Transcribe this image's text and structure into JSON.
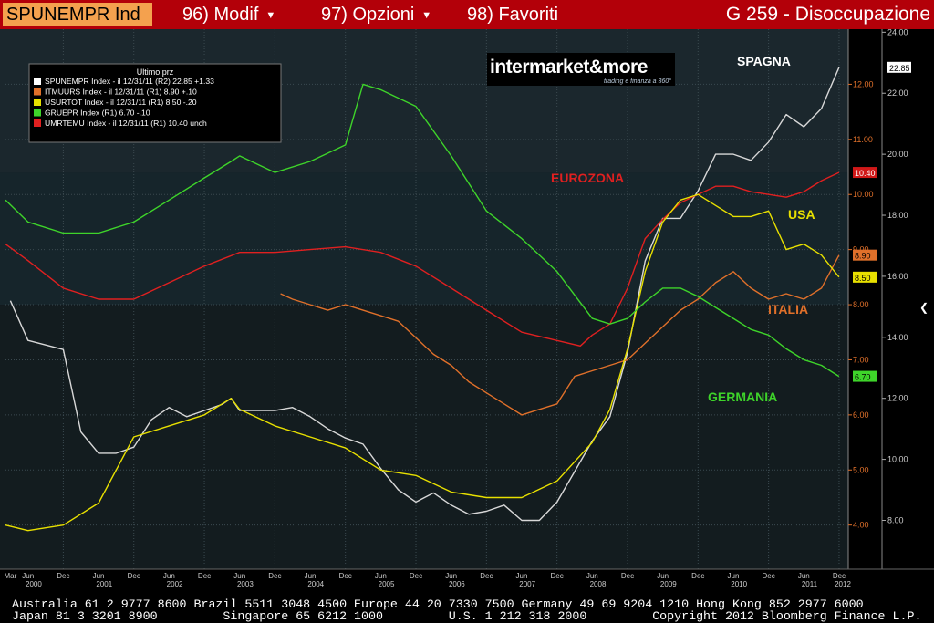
{
  "header": {
    "ticker": "SPUNEMPR Ind",
    "menu": [
      "96) Modif",
      "97) Opzioni",
      "98) Favoriti"
    ],
    "graph_title": "G 259 - Disoccupazione"
  },
  "colors": {
    "spagna": "#d8d8d8",
    "italia": "#e0702a",
    "usa": "#e8e000",
    "germania": "#3ed42a",
    "eurozona": "#e02020"
  },
  "legend": {
    "title": "Ultimo prz",
    "rows": [
      {
        "text": "SPUNEMPR Index -  il 12/31/11  (R2) 22.85  +1.33",
        "color": "#ffffff"
      },
      {
        "text": "ITMUURS Index -  il 12/31/11  (R1)   8.90  +.10",
        "color": "#e0702a"
      },
      {
        "text": "USURTOT Index -  il 12/31/11  (R1)   8.50  -.20",
        "color": "#e8e000"
      },
      {
        "text": "GRUEPR Index  (R1)               6.70  -.10",
        "color": "#3ed42a"
      },
      {
        "text": "UMRTEMU Index -  il 12/31/11  (R1)  10.40  unch",
        "color": "#e02020"
      }
    ]
  },
  "logo": {
    "main": "intermarket&more",
    "sub": "trading e finanza a 360°"
  },
  "annotations": {
    "spagna": "SPAGNA",
    "eurozona": "EUROZONA",
    "usa": "USA",
    "italia": "ITALIA",
    "germania": "GERMANIA"
  },
  "last_labels": {
    "spagna": "22.85",
    "eurozona": "10.40",
    "italia": "8.90",
    "usa": "8.50",
    "germania": "6.70"
  },
  "chart_data": {
    "type": "line",
    "x_ticks": [
      {
        "label": "Mar",
        "t": 2000.17
      },
      {
        "label": "Jun",
        "t": 2000.42
      },
      {
        "label": "Dec",
        "t": 2000.92
      },
      {
        "label": "Jun",
        "t": 2001.42
      },
      {
        "label": "Dec",
        "t": 2001.92
      },
      {
        "label": "Jun",
        "t": 2002.42
      },
      {
        "label": "Dec",
        "t": 2002.92
      },
      {
        "label": "Jun",
        "t": 2003.42
      },
      {
        "label": "Dec",
        "t": 2003.92
      },
      {
        "label": "Jun",
        "t": 2004.42
      },
      {
        "label": "Dec",
        "t": 2004.92
      },
      {
        "label": "Jun",
        "t": 2005.42
      },
      {
        "label": "Dec",
        "t": 2005.92
      },
      {
        "label": "Jun",
        "t": 2006.42
      },
      {
        "label": "Dec",
        "t": 2006.92
      },
      {
        "label": "Jun",
        "t": 2007.42
      },
      {
        "label": "Dec",
        "t": 2007.92
      },
      {
        "label": "Jun",
        "t": 2008.42
      },
      {
        "label": "Dec",
        "t": 2008.92
      },
      {
        "label": "Jun",
        "t": 2009.42
      },
      {
        "label": "Dec",
        "t": 2009.92
      },
      {
        "label": "Jun",
        "t": 2010.42
      },
      {
        "label": "Dec",
        "t": 2010.92
      },
      {
        "label": "Jun",
        "t": 2011.42
      },
      {
        "label": "Dec",
        "t": 2011.92
      }
    ],
    "year_labels": [
      "2000",
      "2001",
      "2002",
      "2003",
      "2004",
      "2005",
      "2006",
      "2007",
      "2008",
      "2009",
      "2010",
      "2011",
      "2012"
    ],
    "x_range": [
      2000.1,
      2012.05
    ],
    "left_axis": {
      "name": "R1",
      "ticks": [
        "4.00",
        "5.00",
        "6.00",
        "7.00",
        "8.00",
        "9.00",
        "10.00",
        "11.00",
        "12.00"
      ],
      "range": [
        3.2,
        13.0
      ]
    },
    "right_axis": {
      "name": "R2",
      "ticks": [
        "8.00",
        "10.00",
        "12.00",
        "14.00",
        "16.00",
        "18.00",
        "20.00",
        "22.00",
        "24.00"
      ],
      "range": [
        6.4,
        24.1
      ]
    },
    "series": [
      {
        "name": "SPUNEMPR Index",
        "key": "spagna",
        "axis": "R2",
        "points": [
          [
            2000.17,
            15.2
          ],
          [
            2000.42,
            13.9
          ],
          [
            2000.75,
            13.7
          ],
          [
            2000.92,
            13.6
          ],
          [
            2001.17,
            10.9
          ],
          [
            2001.42,
            10.2
          ],
          [
            2001.67,
            10.2
          ],
          [
            2001.92,
            10.4
          ],
          [
            2002.17,
            11.3
          ],
          [
            2002.42,
            11.7
          ],
          [
            2002.67,
            11.4
          ],
          [
            2002.92,
            11.6
          ],
          [
            2003.17,
            11.8
          ],
          [
            2003.3,
            12.0
          ],
          [
            2003.42,
            11.6
          ],
          [
            2003.67,
            11.6
          ],
          [
            2003.92,
            11.6
          ],
          [
            2004.17,
            11.7
          ],
          [
            2004.42,
            11.4
          ],
          [
            2004.67,
            11.0
          ],
          [
            2004.92,
            10.7
          ],
          [
            2005.17,
            10.5
          ],
          [
            2005.42,
            9.7
          ],
          [
            2005.67,
            9.0
          ],
          [
            2005.92,
            8.6
          ],
          [
            2006.17,
            8.9
          ],
          [
            2006.42,
            8.5
          ],
          [
            2006.67,
            8.2
          ],
          [
            2006.92,
            8.3
          ],
          [
            2007.17,
            8.5
          ],
          [
            2007.42,
            8.0
          ],
          [
            2007.67,
            8.0
          ],
          [
            2007.92,
            8.6
          ],
          [
            2008.17,
            9.6
          ],
          [
            2008.42,
            10.6
          ],
          [
            2008.67,
            11.4
          ],
          [
            2008.92,
            13.5
          ],
          [
            2009.17,
            16.5
          ],
          [
            2009.42,
            17.9
          ],
          [
            2009.67,
            17.9
          ],
          [
            2009.92,
            18.8
          ],
          [
            2010.17,
            20.0
          ],
          [
            2010.42,
            20.0
          ],
          [
            2010.67,
            19.8
          ],
          [
            2010.92,
            20.4
          ],
          [
            2011.17,
            21.3
          ],
          [
            2011.42,
            20.9
          ],
          [
            2011.67,
            21.5
          ],
          [
            2011.92,
            22.85
          ]
        ]
      },
      {
        "name": "UMRTEMU Index",
        "key": "eurozona",
        "axis": "R1",
        "points": [
          [
            2000.1,
            9.1
          ],
          [
            2000.42,
            8.8
          ],
          [
            2000.92,
            8.3
          ],
          [
            2001.42,
            8.1
          ],
          [
            2001.92,
            8.1
          ],
          [
            2002.42,
            8.4
          ],
          [
            2002.92,
            8.7
          ],
          [
            2003.42,
            8.95
          ],
          [
            2003.92,
            8.95
          ],
          [
            2004.42,
            9.0
          ],
          [
            2004.92,
            9.05
          ],
          [
            2005.42,
            8.95
          ],
          [
            2005.92,
            8.7
          ],
          [
            2006.42,
            8.3
          ],
          [
            2006.92,
            7.9
          ],
          [
            2007.42,
            7.5
          ],
          [
            2007.92,
            7.35
          ],
          [
            2008.25,
            7.25
          ],
          [
            2008.42,
            7.45
          ],
          [
            2008.67,
            7.65
          ],
          [
            2008.92,
            8.3
          ],
          [
            2009.17,
            9.2
          ],
          [
            2009.42,
            9.55
          ],
          [
            2009.67,
            9.85
          ],
          [
            2009.92,
            10.0
          ],
          [
            2010.17,
            10.15
          ],
          [
            2010.42,
            10.15
          ],
          [
            2010.67,
            10.05
          ],
          [
            2010.92,
            10.0
          ],
          [
            2011.17,
            9.95
          ],
          [
            2011.42,
            10.05
          ],
          [
            2011.67,
            10.25
          ],
          [
            2011.92,
            10.4
          ]
        ]
      },
      {
        "name": "ITMUURS Index",
        "key": "italia",
        "axis": "R1",
        "points": [
          [
            2004.0,
            8.2
          ],
          [
            2004.17,
            8.1
          ],
          [
            2004.42,
            8.0
          ],
          [
            2004.67,
            7.9
          ],
          [
            2004.92,
            8.0
          ],
          [
            2005.17,
            7.9
          ],
          [
            2005.42,
            7.8
          ],
          [
            2005.67,
            7.7
          ],
          [
            2005.92,
            7.4
          ],
          [
            2006.17,
            7.1
          ],
          [
            2006.42,
            6.9
          ],
          [
            2006.67,
            6.6
          ],
          [
            2006.92,
            6.4
          ],
          [
            2007.17,
            6.2
          ],
          [
            2007.42,
            6.0
          ],
          [
            2007.67,
            6.1
          ],
          [
            2007.92,
            6.2
          ],
          [
            2008.17,
            6.7
          ],
          [
            2008.42,
            6.8
          ],
          [
            2008.67,
            6.9
          ],
          [
            2008.92,
            7.0
          ],
          [
            2009.17,
            7.3
          ],
          [
            2009.42,
            7.6
          ],
          [
            2009.67,
            7.9
          ],
          [
            2009.92,
            8.1
          ],
          [
            2010.17,
            8.4
          ],
          [
            2010.42,
            8.6
          ],
          [
            2010.67,
            8.3
          ],
          [
            2010.92,
            8.1
          ],
          [
            2011.17,
            8.2
          ],
          [
            2011.42,
            8.1
          ],
          [
            2011.67,
            8.3
          ],
          [
            2011.92,
            8.9
          ]
        ]
      },
      {
        "name": "USURTOT Index",
        "key": "usa",
        "axis": "R1",
        "points": [
          [
            2000.1,
            4.0
          ],
          [
            2000.42,
            3.9
          ],
          [
            2000.92,
            4.0
          ],
          [
            2001.42,
            4.4
          ],
          [
            2001.92,
            5.6
          ],
          [
            2002.42,
            5.8
          ],
          [
            2002.92,
            6.0
          ],
          [
            2003.3,
            6.3
          ],
          [
            2003.42,
            6.1
          ],
          [
            2003.92,
            5.8
          ],
          [
            2004.42,
            5.6
          ],
          [
            2004.92,
            5.4
          ],
          [
            2005.42,
            5.0
          ],
          [
            2005.92,
            4.9
          ],
          [
            2006.42,
            4.6
          ],
          [
            2006.92,
            4.5
          ],
          [
            2007.42,
            4.5
          ],
          [
            2007.92,
            4.8
          ],
          [
            2008.42,
            5.5
          ],
          [
            2008.67,
            6.1
          ],
          [
            2008.92,
            7.2
          ],
          [
            2009.17,
            8.6
          ],
          [
            2009.42,
            9.5
          ],
          [
            2009.67,
            9.9
          ],
          [
            2009.92,
            10.0
          ],
          [
            2010.17,
            9.8
          ],
          [
            2010.42,
            9.6
          ],
          [
            2010.67,
            9.6
          ],
          [
            2010.92,
            9.7
          ],
          [
            2011.17,
            9.0
          ],
          [
            2011.42,
            9.1
          ],
          [
            2011.67,
            8.9
          ],
          [
            2011.92,
            8.5
          ]
        ]
      },
      {
        "name": "GRUEPR Index",
        "key": "germania",
        "axis": "R1",
        "points": [
          [
            2000.1,
            9.9
          ],
          [
            2000.42,
            9.5
          ],
          [
            2000.92,
            9.3
          ],
          [
            2001.42,
            9.3
          ],
          [
            2001.92,
            9.5
          ],
          [
            2002.42,
            9.9
          ],
          [
            2002.92,
            10.3
          ],
          [
            2003.3,
            10.6
          ],
          [
            2003.42,
            10.7
          ],
          [
            2003.92,
            10.4
          ],
          [
            2004.42,
            10.6
          ],
          [
            2004.92,
            10.9
          ],
          [
            2005.17,
            12.0
          ],
          [
            2005.42,
            11.9
          ],
          [
            2005.92,
            11.6
          ],
          [
            2006.42,
            10.7
          ],
          [
            2006.92,
            9.7
          ],
          [
            2007.42,
            9.2
          ],
          [
            2007.92,
            8.6
          ],
          [
            2008.42,
            7.75
          ],
          [
            2008.67,
            7.65
          ],
          [
            2008.92,
            7.75
          ],
          [
            2009.17,
            8.05
          ],
          [
            2009.42,
            8.3
          ],
          [
            2009.67,
            8.3
          ],
          [
            2009.92,
            8.15
          ],
          [
            2010.17,
            7.95
          ],
          [
            2010.42,
            7.75
          ],
          [
            2010.67,
            7.55
          ],
          [
            2010.92,
            7.45
          ],
          [
            2011.17,
            7.2
          ],
          [
            2011.42,
            7.0
          ],
          [
            2011.67,
            6.9
          ],
          [
            2011.92,
            6.7
          ]
        ]
      }
    ]
  },
  "footer": {
    "line1": "Australia 61 2 9777 8600 Brazil 5511 3048 4500 Europe 44 20 7330 7500 Germany 49 69 9204 1210 Hong Kong 852 2977 6000",
    "line2": "Japan 81 3 3201 8900         Singapore 65 6212 1000         U.S. 1 212 318 2000         Copyright 2012 Bloomberg Finance L.P."
  }
}
